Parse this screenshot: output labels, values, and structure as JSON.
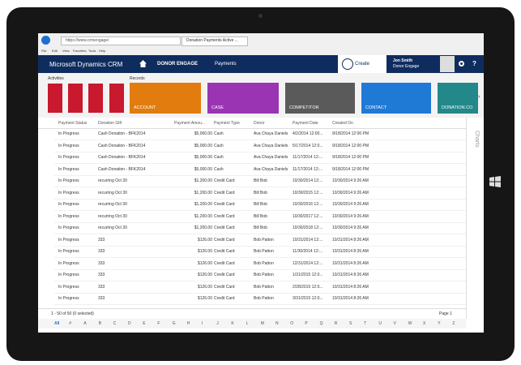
{
  "browser": {
    "url": "https://www.crmengage/",
    "tab": "Donation Payments Active ...",
    "menu": [
      "File",
      "Edit",
      "View",
      "Favorites",
      "Tools",
      "Help"
    ]
  },
  "nav": {
    "app": "Microsoft Dynamics CRM",
    "area": "DONOR ENGAGE",
    "entity": "Payments",
    "create": "Create",
    "user": "Jon Smith",
    "org": "Donor Engage"
  },
  "ribbon": {
    "activities": "Activities",
    "records": "Records",
    "tiles": [
      {
        "label": "ACCOUNT",
        "color": "#e27c0e"
      },
      {
        "label": "CASE",
        "color": "#9b34b2"
      },
      {
        "label": "COMPETITOR",
        "color": "#5a5a5a"
      },
      {
        "label": "CONTACT",
        "color": "#1f7ad6"
      },
      {
        "label": "DONATION CO",
        "color": "#23888a"
      }
    ]
  },
  "grid": {
    "columns": [
      "Payment Status",
      "Donation Gift",
      "Payment Amou...",
      "Payment Type",
      "Donor",
      "Payment Date",
      "Created On"
    ],
    "rows": [
      [
        "In Progress",
        "Cash Donation - BFK2014",
        "$5,000.00",
        "Cash",
        "Ava Chaya Daniels",
        "4/2/2014 12:00...",
        "9/18/2014 12:00 PM"
      ],
      [
        "In Progress",
        "Cash Donation - BFK2014",
        "$5,000.00",
        "Cash",
        "Ava Chaya Daniels",
        "5/17/2014 12:0...",
        "9/18/2014 12:00 PM"
      ],
      [
        "In Progress",
        "Cash Donation - BFK2014",
        "$5,000.00",
        "Cash",
        "Ava Chaya Daniels",
        "11/17/2014 12:...",
        "9/18/2014 12:00 PM"
      ],
      [
        "In Progress",
        "Cash Donation - BFK2014",
        "$5,000.00",
        "Cash",
        "Ava Chaya Daniels",
        "11/17/2014 12:...",
        "9/18/2014 12:00 PM"
      ],
      [
        "In Progress",
        "recurring Oct 30",
        "$1,200.00",
        "Credit Card",
        "Bill Bob",
        "10/30/2014 12:...",
        "10/30/2014 9:26 AM"
      ],
      [
        "In Progress",
        "recurring Oct 30",
        "$1,200.00",
        "Credit Card",
        "Bill Bob",
        "10/30/2015 12:...",
        "10/30/2014 9:26 AM"
      ],
      [
        "In Progress",
        "recurring Oct 30",
        "$1,200.00",
        "Credit Card",
        "Bill Bob",
        "10/30/2016 12:...",
        "10/30/2014 9:26 AM"
      ],
      [
        "In Progress",
        "recurring Oct 30",
        "$1,200.00",
        "Credit Card",
        "Bill Bob",
        "10/30/2017 12:...",
        "10/30/2014 9:26 AM"
      ],
      [
        "In Progress",
        "recurring Oct 30",
        "$1,200.00",
        "Credit Card",
        "Bill Bob",
        "10/30/2018 12:...",
        "10/30/2014 9:26 AM"
      ],
      [
        "In Progress",
        "333",
        "$126.00",
        "Credit Card",
        "Bob Patton",
        "10/31/2014 12:...",
        "10/31/2014 8:26 AM"
      ],
      [
        "In Progress",
        "333",
        "$126.00",
        "Credit Card",
        "Bob Patton",
        "11/30/2014 12:...",
        "10/31/2014 8:26 AM"
      ],
      [
        "In Progress",
        "333",
        "$126.00",
        "Credit Card",
        "Bob Patton",
        "12/31/2014 12:...",
        "10/31/2014 8:26 AM"
      ],
      [
        "In Progress",
        "333",
        "$126.00",
        "Credit Card",
        "Bob Patton",
        "1/31/2015 12:0...",
        "10/31/2014 8:26 AM"
      ],
      [
        "In Progress",
        "333",
        "$126.00",
        "Credit Card",
        "Bob Patton",
        "2/28/2015 12:0...",
        "10/31/2014 8:26 AM"
      ],
      [
        "In Progress",
        "333",
        "$126.00",
        "Credit Card",
        "Bob Patton",
        "3/31/2015 12:0...",
        "10/31/2014 8:26 AM"
      ]
    ],
    "footer": "1 - 50 of 50 (0 selected)",
    "page": "Page 1",
    "alphabet": [
      "All",
      "#",
      "A",
      "B",
      "C",
      "D",
      "E",
      "F",
      "G",
      "H",
      "I",
      "J",
      "K",
      "L",
      "M",
      "N",
      "O",
      "P",
      "Q",
      "R",
      "S",
      "T",
      "U",
      "V",
      "W",
      "X",
      "Y",
      "Z"
    ]
  },
  "sidebar": "Charts"
}
